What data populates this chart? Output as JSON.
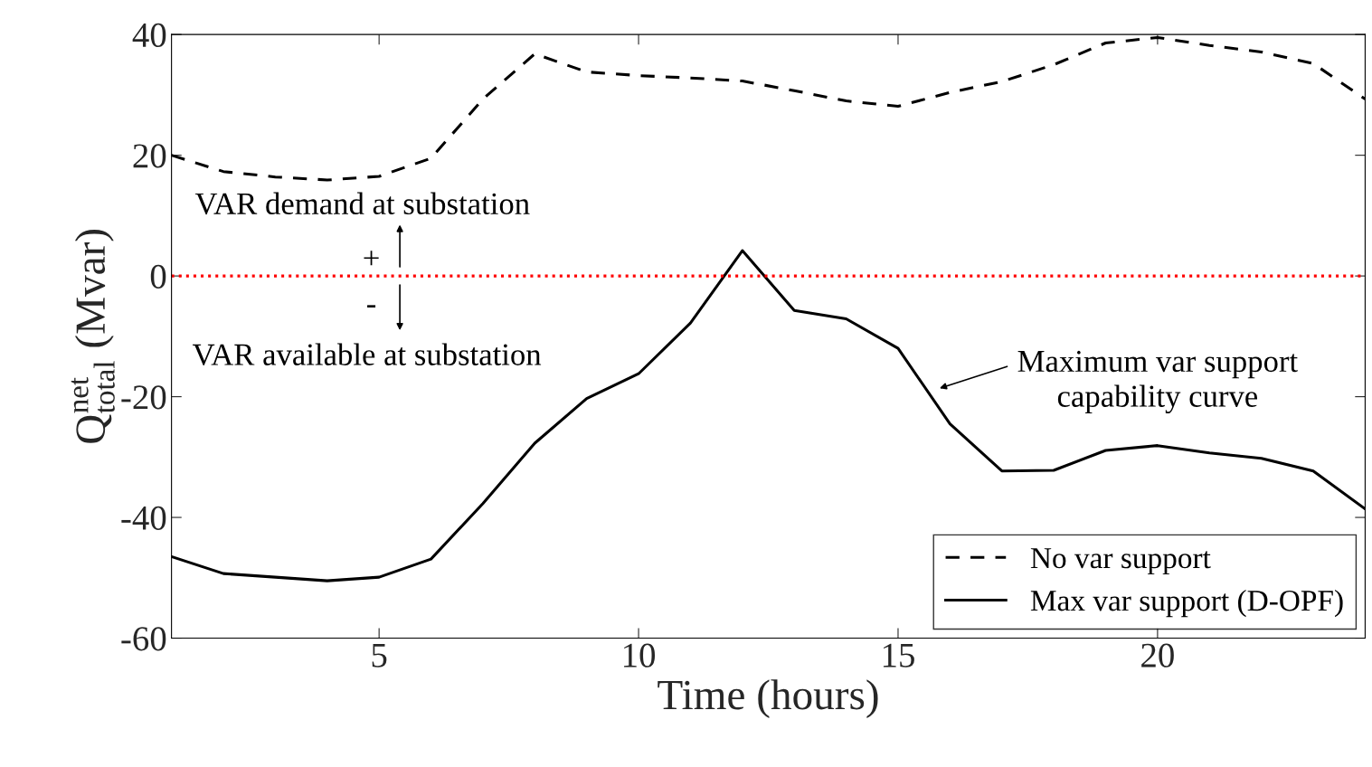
{
  "chart_data": {
    "type": "line",
    "xlabel": "Time (hours)",
    "ylabel": "Q$^{net}$$_{total}$ (Mvar)",
    "x": [
      1,
      2,
      3,
      4,
      5,
      6,
      7,
      8,
      9,
      10,
      11,
      12,
      13,
      14,
      15,
      16,
      17,
      18,
      19,
      20,
      21,
      22,
      23,
      24
    ],
    "xlim": [
      1,
      24
    ],
    "xticks": [
      5,
      10,
      15,
      20
    ],
    "ylim": [
      -60,
      40
    ],
    "yticks": [
      -60,
      -40,
      -20,
      0,
      20,
      40
    ],
    "series": [
      {
        "name": "No var support",
        "color": "#000000",
        "line_style": "dashed",
        "values": [
          20.0,
          17.3,
          16.4,
          15.9,
          16.5,
          19.5,
          29.3,
          36.8,
          33.8,
          33.2,
          32.8,
          32.3,
          30.7,
          29.0,
          28.1,
          30.4,
          32.2,
          35.0,
          38.6,
          39.5,
          38.2,
          37.1,
          35.2,
          29.3
        ]
      },
      {
        "name": "Max var support (D-OPF)",
        "color": "#000000",
        "line_style": "solid",
        "values": [
          -46.5,
          -49.3,
          -49.9,
          -50.5,
          -49.9,
          -46.9,
          -37.7,
          -27.7,
          -20.3,
          -16.2,
          -7.8,
          4.2,
          -5.7,
          -7.1,
          -12.0,
          -24.5,
          -32.3,
          -32.2,
          -28.9,
          -28.1,
          -29.3,
          -30.2,
          -32.3,
          -38.6
        ]
      }
    ],
    "ref_lines": [
      {
        "axis": "y",
        "value": 0,
        "color": "#ff0000",
        "line_style": "dotted"
      }
    ],
    "annotations": [
      "VAR demand at substation",
      "+",
      "-",
      "VAR available at substation",
      "Maximum var support\ncapability curve"
    ],
    "legend": "bottom right",
    "grid": false
  }
}
